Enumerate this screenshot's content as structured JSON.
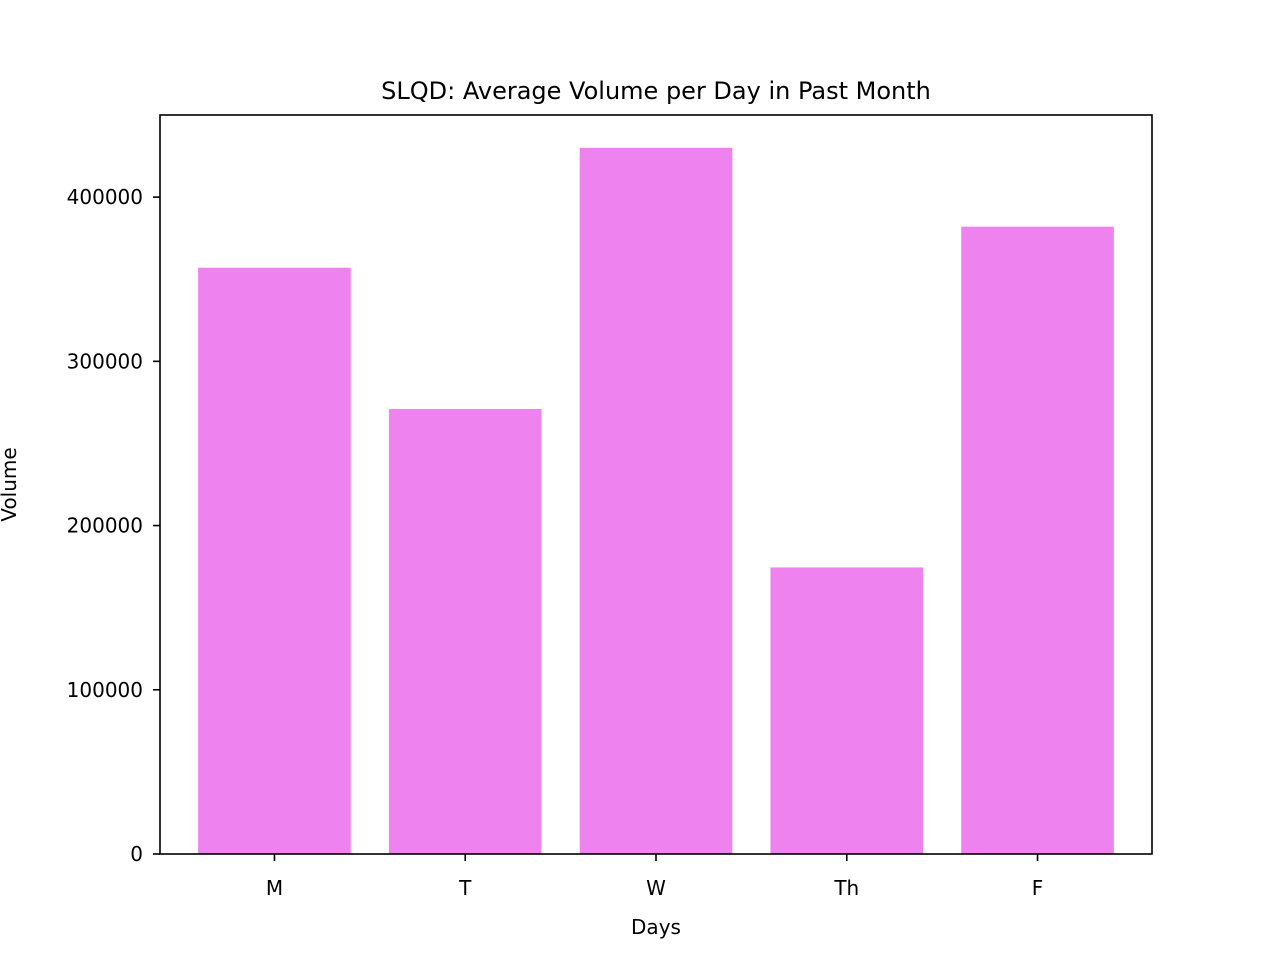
{
  "chart_data": {
    "type": "bar",
    "title": "SLQD: Average Volume per Day in Past Month",
    "xlabel": "Days",
    "ylabel": "Volume",
    "categories": [
      "M",
      "T",
      "W",
      "Th",
      "F"
    ],
    "values": [
      357000,
      271000,
      430000,
      174500,
      382000
    ],
    "ylim": [
      0,
      450000
    ],
    "yticks": [
      0,
      100000,
      200000,
      300000,
      400000
    ],
    "ytick_labels": [
      "0",
      "100000",
      "200000",
      "300000",
      "400000"
    ],
    "grid": false,
    "legend": "none",
    "bar_color": "#ee82ee"
  }
}
